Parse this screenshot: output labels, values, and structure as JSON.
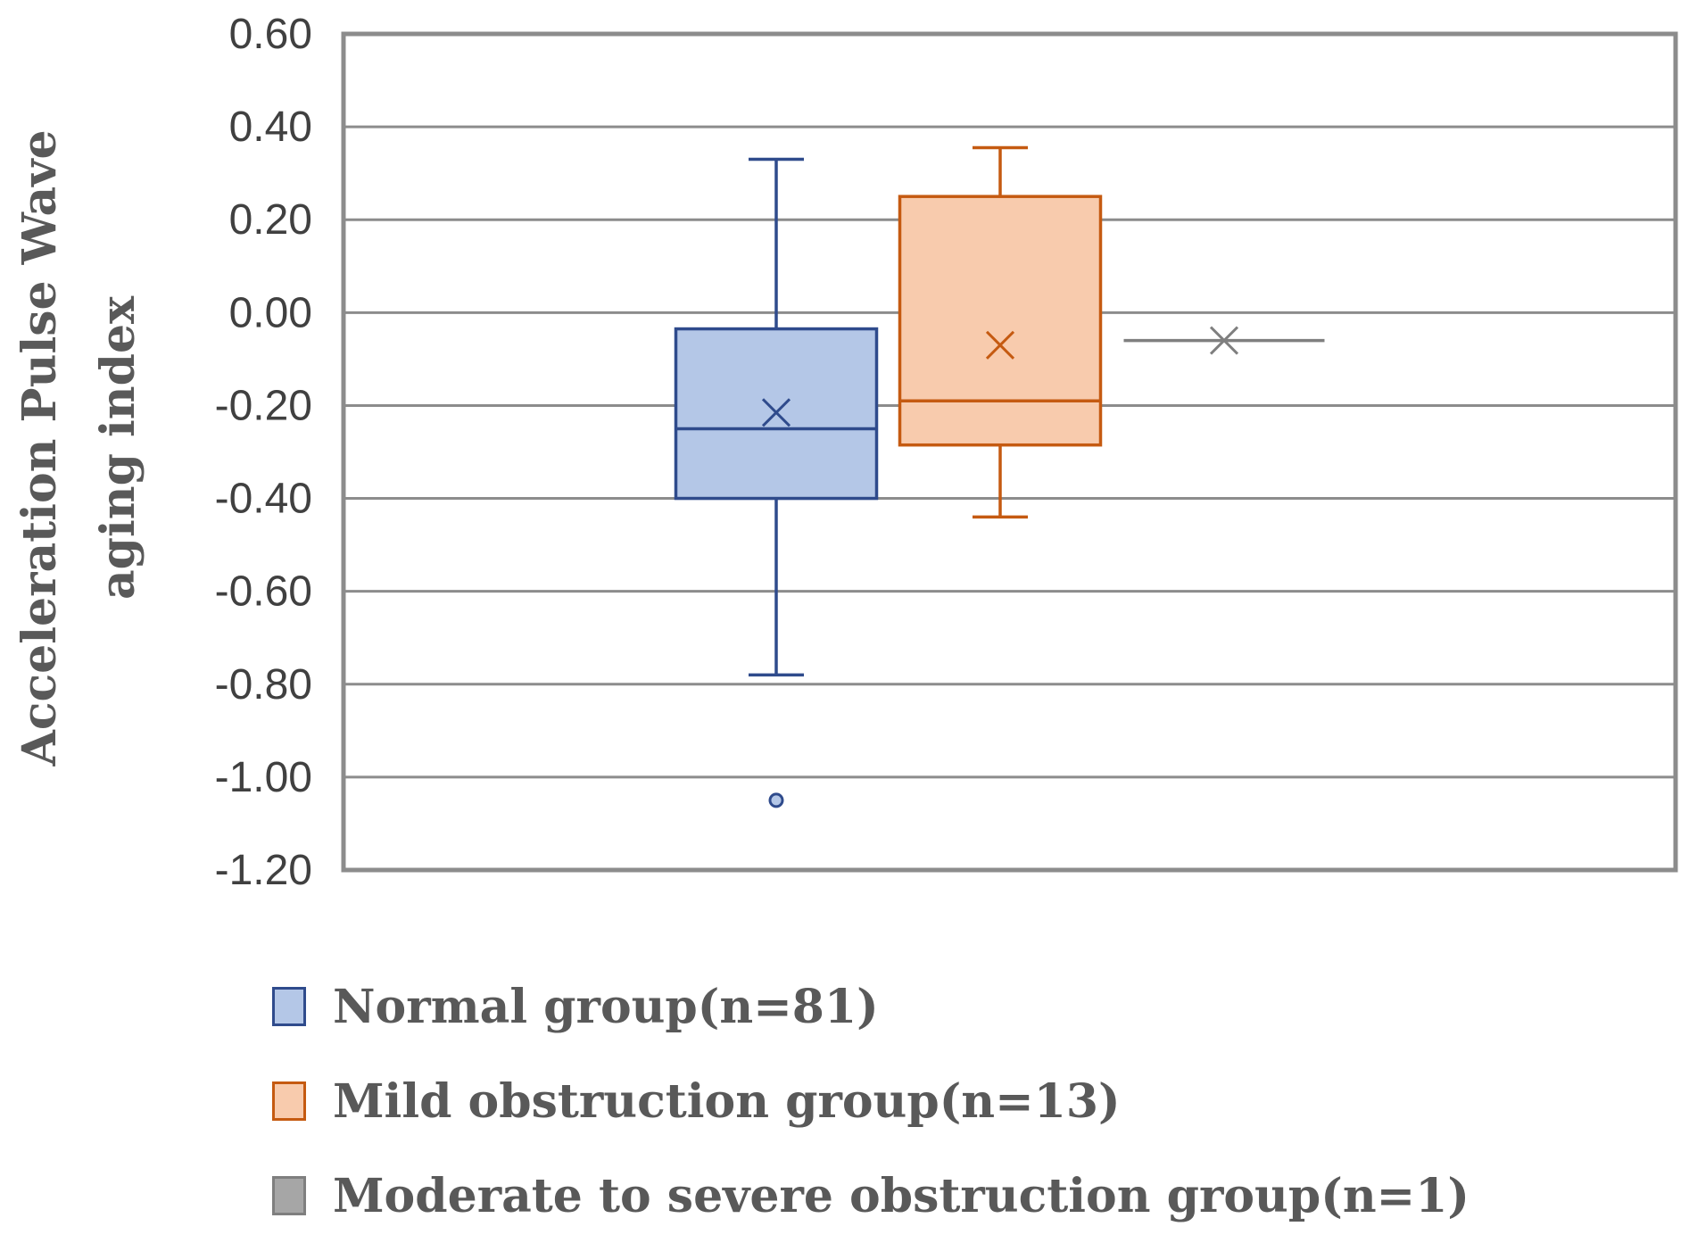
{
  "chart_data": {
    "type": "box",
    "title": "",
    "xlabel": "",
    "ylabel_lines": [
      "Acceleration Pulse Wave",
      "aging index"
    ],
    "ylim": [
      -1.2,
      0.6
    ],
    "yticks": [
      "0.60",
      "0.40",
      "0.20",
      "0.00",
      "-0.20",
      "-0.40",
      "-0.60",
      "-0.80",
      "-1.00",
      "-1.20"
    ],
    "grid": true,
    "legend_position": "bottom",
    "series": [
      {
        "name": "Normal group(n=81)",
        "color": "#b4c7e7",
        "edge": "#2f4b8c",
        "whisker_low": -0.78,
        "q1": -0.4,
        "median": -0.25,
        "q3": -0.035,
        "whisker_high": 0.33,
        "mean": -0.215,
        "outliers": [
          -1.05
        ]
      },
      {
        "name": "Mild obstruction group(n=13)",
        "color": "#f8cbad",
        "edge": "#c55a11",
        "whisker_low": -0.44,
        "q1": -0.285,
        "median": -0.19,
        "q3": 0.25,
        "whisker_high": 0.355,
        "mean": -0.07,
        "outliers": []
      },
      {
        "name": "Moderate to severe obstruction group(n=1)",
        "color": "#a6a6a6",
        "edge": "#7f7f7f",
        "whisker_low": -0.06,
        "q1": -0.06,
        "median": -0.06,
        "q3": -0.06,
        "whisker_high": -0.06,
        "mean": -0.06,
        "outliers": []
      }
    ]
  }
}
